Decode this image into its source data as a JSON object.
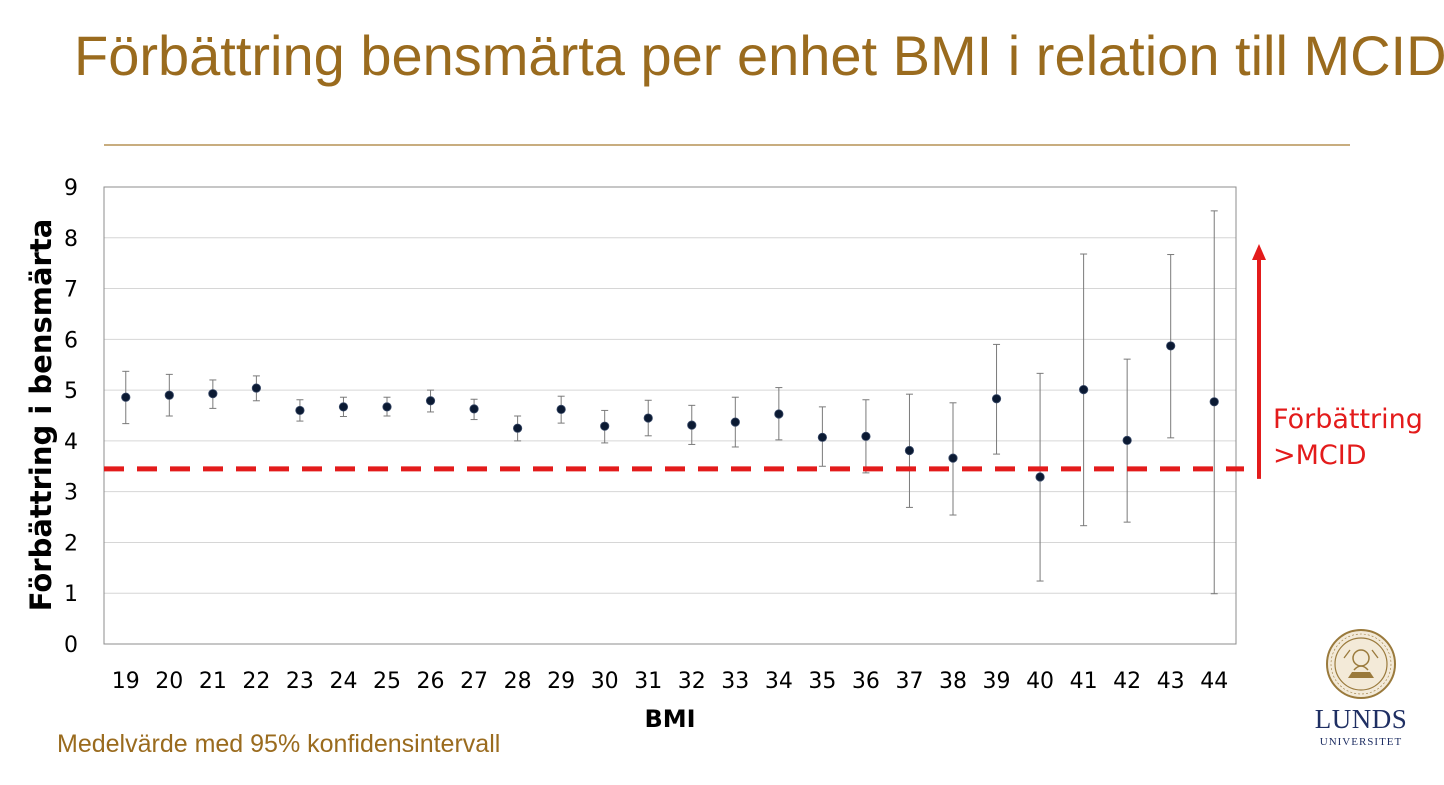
{
  "slide": {
    "title": "Förbättring bensmärta per enhet BMI i relation till MCID",
    "footnote": "Medelvärde med 95% konfidensintervall"
  },
  "logo": {
    "name": "Lund University seal",
    "wordmark_1": "LUNDS",
    "wordmark_2": "UNIVERSITET"
  },
  "colors": {
    "title": "#9a6b1e",
    "mcid": "#e31b1b",
    "points": "#0b1a33",
    "logo": "#1f2f63"
  },
  "chart_data": {
    "type": "scatter",
    "title": "",
    "xlabel": "BMI",
    "ylabel": "Förbättring i bensmärta",
    "ylim": [
      0,
      9
    ],
    "yticks": [
      0,
      1,
      2,
      3,
      4,
      5,
      6,
      7,
      8,
      9
    ],
    "grid": true,
    "categories": [
      "19",
      "20",
      "21",
      "22",
      "23",
      "24",
      "25",
      "26",
      "27",
      "28",
      "29",
      "30",
      "31",
      "32",
      "33",
      "34",
      "35",
      "36",
      "37",
      "38",
      "39",
      "40",
      "41",
      "42",
      "43",
      "44"
    ],
    "series": [
      {
        "name": "Medelvärde",
        "values": [
          4.86,
          4.9,
          4.93,
          5.04,
          4.6,
          4.67,
          4.67,
          4.79,
          4.63,
          4.25,
          4.62,
          4.29,
          4.45,
          4.31,
          4.37,
          4.53,
          4.07,
          4.09,
          3.81,
          3.66,
          4.83,
          3.29,
          5.01,
          4.01,
          5.87,
          4.77
        ],
        "ci_lower": [
          4.34,
          4.49,
          4.64,
          4.79,
          4.39,
          4.48,
          4.49,
          4.57,
          4.42,
          4.0,
          4.35,
          3.96,
          4.1,
          3.93,
          3.88,
          4.02,
          3.5,
          3.37,
          2.69,
          2.54,
          3.74,
          1.24,
          2.33,
          2.4,
          4.06,
          0.99
        ],
        "ci_upper": [
          5.37,
          5.31,
          5.2,
          5.28,
          4.81,
          4.86,
          4.86,
          5.0,
          4.82,
          4.49,
          4.88,
          4.6,
          4.8,
          4.7,
          4.86,
          5.05,
          4.67,
          4.81,
          4.92,
          4.75,
          5.9,
          5.33,
          7.68,
          5.61,
          7.67,
          8.53
        ]
      }
    ],
    "reference_line": {
      "name": "MCID",
      "value": 3.45,
      "style": "dashed"
    },
    "annotation": {
      "line1": "Förbättring",
      "line2": ">MCID"
    }
  }
}
